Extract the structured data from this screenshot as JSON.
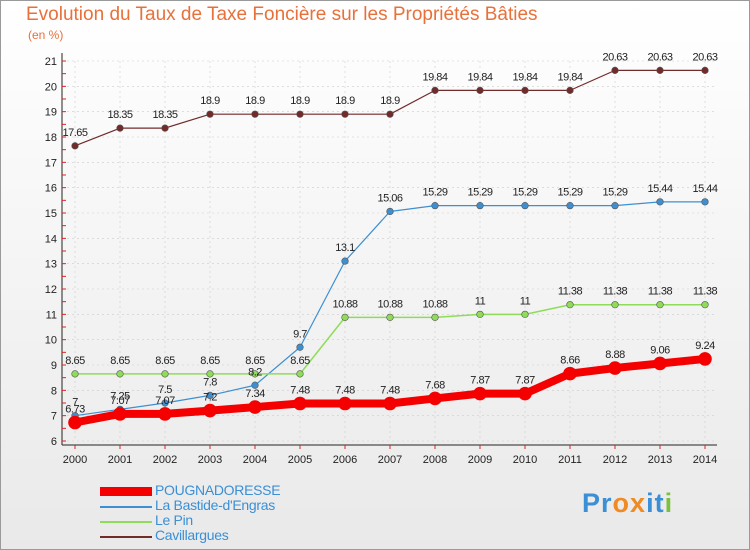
{
  "header": {
    "title": "Evolution du Taux de Taxe Foncière sur les Propriétés Bâties",
    "unit": "(en %)"
  },
  "logo": {
    "text": "Proxiti",
    "letters": [
      {
        "ch": "P",
        "color": "#3a8fd6"
      },
      {
        "ch": "r",
        "color": "#3a8fd6"
      },
      {
        "ch": "o",
        "color": "#f08a24"
      },
      {
        "ch": "x",
        "color": "#f08a24"
      },
      {
        "ch": "i",
        "color": "#3a8fd6"
      },
      {
        "ch": "t",
        "color": "#3a8fd6"
      },
      {
        "ch": "i",
        "color": "#7cc13d"
      }
    ]
  },
  "colors": {
    "title": "#e8703a",
    "unit": "#e8703a",
    "legend_text": "#3a8fd6",
    "axis_text": "#222222",
    "grid": "#cccccc",
    "axis_ticks": "#e02020",
    "background_top": "#ffffff",
    "background_bottom": "#e9e9e9"
  },
  "chart_data": {
    "type": "line",
    "x": [
      2000,
      2001,
      2002,
      2003,
      2004,
      2005,
      2006,
      2007,
      2008,
      2009,
      2010,
      2011,
      2012,
      2013,
      2014
    ],
    "ylim": [
      6,
      21
    ],
    "yticks": [
      6,
      7,
      8,
      9,
      10,
      11,
      12,
      13,
      14,
      15,
      16,
      17,
      18,
      19,
      20,
      21
    ],
    "grid": true,
    "legend_position": "bottom-left",
    "series": [
      {
        "name": "Cavillargues",
        "color": "#722b2b",
        "width": 1.2,
        "marker_r": 3.3,
        "values": [
          17.65,
          18.35,
          18.35,
          18.9,
          18.9,
          18.9,
          18.9,
          18.9,
          19.84,
          19.84,
          19.84,
          19.84,
          20.63,
          20.63,
          20.63
        ],
        "labels": [
          "17.65",
          "18.35",
          "18.35",
          "18.9",
          "18.9",
          "18.9",
          "18.9",
          "18.9",
          "19.84",
          "19.84",
          "19.84",
          "19.84",
          "20.63",
          "20.63",
          "20.63"
        ]
      },
      {
        "name": "La Bastide-d'Engras",
        "color": "#3d8fd1",
        "width": 1.2,
        "marker_r": 3.3,
        "values": [
          7.0,
          7.25,
          7.5,
          7.8,
          8.2,
          9.7,
          13.1,
          15.06,
          15.29,
          15.29,
          15.29,
          15.29,
          15.29,
          15.44,
          15.44
        ],
        "labels": [
          "7",
          "7.25",
          "7.5",
          "7.8",
          "8.2",
          "9.7",
          "13.1",
          "15.06",
          "15.29",
          "15.29",
          "15.29",
          "15.29",
          "15.29",
          "15.44",
          "15.44"
        ]
      },
      {
        "name": "Le Pin",
        "color": "#8fdc5a",
        "width": 1.5,
        "marker_r": 3.3,
        "values": [
          8.65,
          8.65,
          8.65,
          8.65,
          8.65,
          8.65,
          10.88,
          10.88,
          10.88,
          11,
          11,
          11.38,
          11.38,
          11.38,
          11.38
        ],
        "labels": [
          "8.65",
          "8.65",
          "8.65",
          "8.65",
          "8.65",
          "8.65",
          "10.88",
          "10.88",
          "10.88",
          "11",
          "11",
          "11.38",
          "11.38",
          "11.38",
          "11.38"
        ]
      },
      {
        "name": "POUGNADORESSE",
        "color": "#f40000",
        "width": 8,
        "marker_r": 6.5,
        "values": [
          6.73,
          7.07,
          7.07,
          7.2,
          7.34,
          7.48,
          7.48,
          7.48,
          7.68,
          7.87,
          7.87,
          8.66,
          8.88,
          9.06,
          9.24
        ],
        "labels": [
          "6.73",
          "7.07",
          "7.07",
          "7.2",
          "7.34",
          "7.48",
          "7.48",
          "7.48",
          "7.68",
          "7.87",
          "7.87",
          "8.66",
          "8.88",
          "9.06",
          "9.24"
        ]
      }
    ],
    "legend": [
      "POUGNADORESSE",
      "La Bastide-d'Engras",
      "Le Pin",
      "Cavillargues"
    ]
  }
}
